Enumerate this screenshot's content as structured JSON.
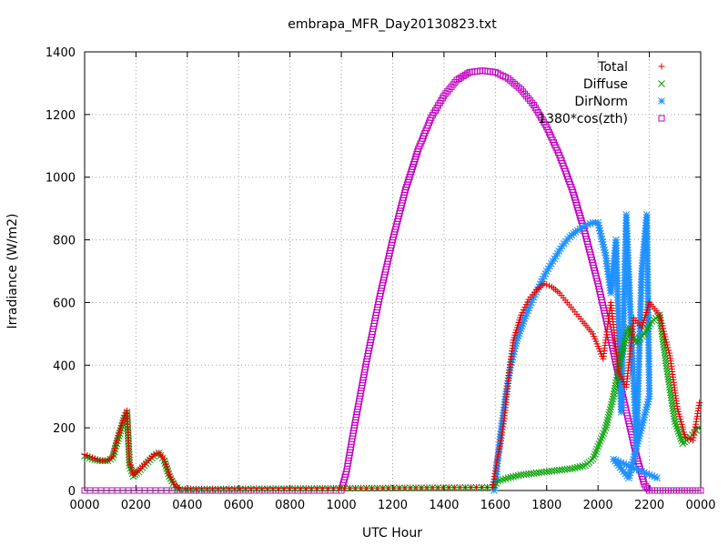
{
  "chart_data": {
    "type": "scatter",
    "title": "embrapa_MFR_Day20130823.txt",
    "xlabel": "UTC Hour",
    "ylabel": "Irradiance (W/m2)",
    "xlim": [
      0,
      24
    ],
    "ylim": [
      0,
      1400
    ],
    "grid": true,
    "legend_position": "top-right",
    "x_ticks": [
      {
        "value": 0,
        "label": "0000"
      },
      {
        "value": 2,
        "label": "0200"
      },
      {
        "value": 4,
        "label": "0400"
      },
      {
        "value": 6,
        "label": "0600"
      },
      {
        "value": 8,
        "label": "0800"
      },
      {
        "value": 10,
        "label": "1000"
      },
      {
        "value": 12,
        "label": "1200"
      },
      {
        "value": 14,
        "label": "1400"
      },
      {
        "value": 16,
        "label": "1600"
      },
      {
        "value": 18,
        "label": "1800"
      },
      {
        "value": 20,
        "label": "2000"
      },
      {
        "value": 22,
        "label": "2200"
      },
      {
        "value": 24,
        "label": "0000"
      }
    ],
    "y_ticks": [
      0,
      200,
      400,
      600,
      800,
      1000,
      1200,
      1400
    ],
    "series": [
      {
        "name": "Total",
        "color": "#e00000",
        "marker": "plus",
        "points": [
          [
            0,
            115
          ],
          [
            0.3,
            105
          ],
          [
            0.6,
            95
          ],
          [
            0.9,
            95
          ],
          [
            1.1,
            110
          ],
          [
            1.25,
            160
          ],
          [
            1.4,
            200
          ],
          [
            1.55,
            240
          ],
          [
            1.65,
            255
          ],
          [
            1.75,
            90
          ],
          [
            1.9,
            50
          ],
          [
            2.1,
            65
          ],
          [
            2.4,
            90
          ],
          [
            2.7,
            115
          ],
          [
            2.9,
            120
          ],
          [
            3.1,
            100
          ],
          [
            3.3,
            50
          ],
          [
            3.5,
            20
          ],
          [
            3.7,
            5
          ],
          [
            15.9,
            10
          ],
          [
            16.05,
            90
          ],
          [
            16.2,
            150
          ],
          [
            16.35,
            230
          ],
          [
            16.5,
            350
          ],
          [
            16.7,
            480
          ],
          [
            17.0,
            560
          ],
          [
            17.3,
            610
          ],
          [
            17.6,
            640
          ],
          [
            17.9,
            660
          ],
          [
            18.2,
            650
          ],
          [
            18.5,
            630
          ],
          [
            18.8,
            600
          ],
          [
            19.1,
            570
          ],
          [
            19.4,
            540
          ],
          [
            19.6,
            520
          ],
          [
            19.8,
            500
          ],
          [
            20.0,
            460
          ],
          [
            20.2,
            420
          ],
          [
            20.5,
            600
          ],
          [
            20.8,
            380
          ],
          [
            21.1,
            330
          ],
          [
            21.4,
            550
          ],
          [
            21.7,
            520
          ],
          [
            22.0,
            600
          ],
          [
            22.4,
            560
          ],
          [
            22.8,
            430
          ],
          [
            23.1,
            260
          ],
          [
            23.4,
            170
          ],
          [
            23.7,
            160
          ],
          [
            23.95,
            280
          ]
        ]
      },
      {
        "name": "Diffuse",
        "color": "#00a000",
        "marker": "cross",
        "points": [
          [
            0,
            110
          ],
          [
            0.3,
            100
          ],
          [
            0.6,
            95
          ],
          [
            0.9,
            95
          ],
          [
            1.1,
            105
          ],
          [
            1.25,
            150
          ],
          [
            1.4,
            190
          ],
          [
            1.55,
            230
          ],
          [
            1.65,
            250
          ],
          [
            1.75,
            80
          ],
          [
            1.9,
            45
          ],
          [
            2.1,
            60
          ],
          [
            2.4,
            85
          ],
          [
            2.7,
            110
          ],
          [
            2.9,
            120
          ],
          [
            3.1,
            95
          ],
          [
            3.3,
            45
          ],
          [
            3.5,
            15
          ],
          [
            3.7,
            3
          ],
          [
            15.9,
            10
          ],
          [
            16.1,
            30
          ],
          [
            16.5,
            40
          ],
          [
            17.0,
            50
          ],
          [
            17.5,
            55
          ],
          [
            18.0,
            60
          ],
          [
            18.5,
            65
          ],
          [
            19.0,
            70
          ],
          [
            19.5,
            80
          ],
          [
            19.8,
            100
          ],
          [
            20.0,
            140
          ],
          [
            20.3,
            200
          ],
          [
            20.6,
            300
          ],
          [
            20.9,
            430
          ],
          [
            21.2,
            520
          ],
          [
            21.5,
            470
          ],
          [
            21.8,
            500
          ],
          [
            22.1,
            540
          ],
          [
            22.4,
            560
          ],
          [
            22.7,
            380
          ],
          [
            23.0,
            220
          ],
          [
            23.3,
            150
          ],
          [
            23.6,
            170
          ],
          [
            23.9,
            200
          ]
        ]
      },
      {
        "name": "DirNorm",
        "color": "#1e90ff",
        "marker": "star",
        "points": [
          [
            15.95,
            0
          ],
          [
            16.05,
            60
          ],
          [
            16.2,
            180
          ],
          [
            16.4,
            300
          ],
          [
            16.6,
            400
          ],
          [
            16.8,
            470
          ],
          [
            17.1,
            540
          ],
          [
            17.4,
            600
          ],
          [
            17.7,
            650
          ],
          [
            18.0,
            700
          ],
          [
            18.3,
            740
          ],
          [
            18.6,
            780
          ],
          [
            18.9,
            810
          ],
          [
            19.2,
            830
          ],
          [
            19.5,
            845
          ],
          [
            19.8,
            855
          ],
          [
            20.0,
            855
          ],
          [
            20.3,
            750
          ],
          [
            20.5,
            630
          ],
          [
            20.7,
            800
          ],
          [
            20.9,
            250
          ],
          [
            21.1,
            880
          ],
          [
            21.3,
            500
          ],
          [
            21.5,
            150
          ],
          [
            21.7,
            700
          ],
          [
            21.9,
            880
          ],
          [
            22.0,
            300
          ],
          [
            21.2,
            40
          ],
          [
            20.6,
            100
          ],
          [
            22.3,
            40
          ]
        ]
      },
      {
        "name": "1380*cos(zth)",
        "color": "#c000c0",
        "marker": "square",
        "points": [
          [
            0,
            0
          ],
          [
            10.0,
            0
          ],
          [
            10.2,
            60
          ],
          [
            10.5,
            200
          ],
          [
            11.0,
            420
          ],
          [
            11.5,
            620
          ],
          [
            12.0,
            800
          ],
          [
            12.5,
            960
          ],
          [
            13.0,
            1090
          ],
          [
            13.5,
            1190
          ],
          [
            14.0,
            1260
          ],
          [
            14.5,
            1310
          ],
          [
            15.0,
            1335
          ],
          [
            15.5,
            1340
          ],
          [
            16.0,
            1335
          ],
          [
            16.5,
            1315
          ],
          [
            17.0,
            1280
          ],
          [
            17.5,
            1230
          ],
          [
            18.0,
            1160
          ],
          [
            18.5,
            1070
          ],
          [
            19.0,
            960
          ],
          [
            19.5,
            820
          ],
          [
            20.0,
            660
          ],
          [
            20.5,
            480
          ],
          [
            21.0,
            290
          ],
          [
            21.5,
            110
          ],
          [
            21.8,
            20
          ],
          [
            22.0,
            0
          ],
          [
            24.0,
            0
          ]
        ]
      }
    ]
  }
}
